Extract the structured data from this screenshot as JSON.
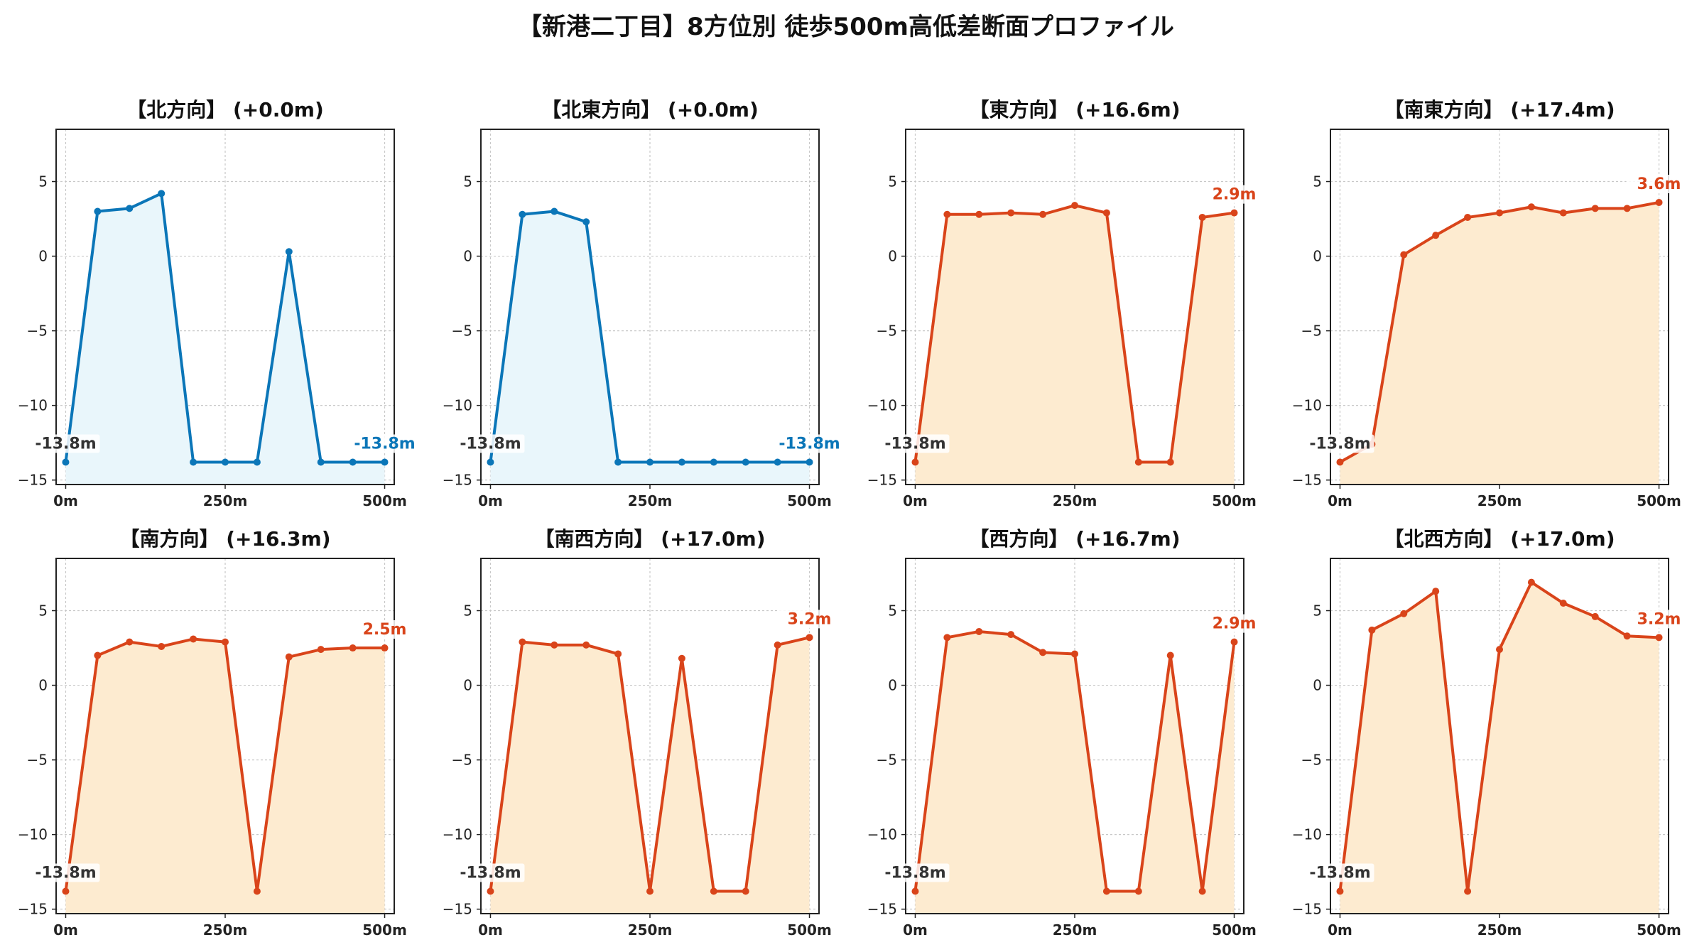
{
  "title": "【新港二丁目】8方位別 徒歩500m高低差断面プロファイル",
  "colors": {
    "flat_line": "#0b76b8",
    "flat_fill": "#e9f6fb",
    "slope_line": "#d9441a",
    "slope_fill": "#fdebd0"
  },
  "chart_data": [
    {
      "type": "area",
      "title": "【北方向】 (+0.0m)",
      "theme": "flat",
      "x": [
        0,
        50,
        100,
        150,
        200,
        250,
        300,
        350,
        400,
        450,
        500
      ],
      "x_ticks": [
        0,
        250,
        500
      ],
      "x_tick_labels": [
        "0m",
        "250m",
        "500m"
      ],
      "y": [
        -13.8,
        3.0,
        3.2,
        4.2,
        -13.8,
        -13.8,
        -13.8,
        0.3,
        -13.8,
        -13.8,
        -13.8
      ],
      "y_ticks": [
        5,
        0,
        -5,
        -10,
        -15
      ],
      "y_tick_labels": [
        "5",
        "0",
        "−5",
        "−10",
        "−15"
      ],
      "ylim": [
        -15.3,
        8.5
      ],
      "xlim": [
        -15,
        515
      ],
      "start_label": "-13.8m",
      "end_label": "-13.8m",
      "grid": true
    },
    {
      "type": "area",
      "title": "【北東方向】 (+0.0m)",
      "theme": "flat",
      "x": [
        0,
        50,
        100,
        150,
        200,
        250,
        300,
        350,
        400,
        450,
        500
      ],
      "x_ticks": [
        0,
        250,
        500
      ],
      "x_tick_labels": [
        "0m",
        "250m",
        "500m"
      ],
      "y": [
        -13.8,
        2.8,
        3.0,
        2.3,
        -13.8,
        -13.8,
        -13.8,
        -13.8,
        -13.8,
        -13.8,
        -13.8
      ],
      "y_ticks": [
        5,
        0,
        -5,
        -10,
        -15
      ],
      "y_tick_labels": [
        "5",
        "0",
        "−5",
        "−10",
        "−15"
      ],
      "ylim": [
        -15.3,
        8.5
      ],
      "xlim": [
        -15,
        515
      ],
      "start_label": "-13.8m",
      "end_label": "-13.8m",
      "grid": true
    },
    {
      "type": "area",
      "title": "【東方向】 (+16.6m)",
      "theme": "slope",
      "x": [
        0,
        50,
        100,
        150,
        200,
        250,
        300,
        350,
        400,
        450,
        500
      ],
      "x_ticks": [
        0,
        250,
        500
      ],
      "x_tick_labels": [
        "0m",
        "250m",
        "500m"
      ],
      "y": [
        -13.8,
        2.8,
        2.8,
        2.9,
        2.8,
        3.4,
        2.9,
        -13.8,
        -13.8,
        2.6,
        2.9
      ],
      "y_ticks": [
        5,
        0,
        -5,
        -10,
        -15
      ],
      "y_tick_labels": [
        "5",
        "0",
        "−5",
        "−10",
        "−15"
      ],
      "ylim": [
        -15.3,
        8.5
      ],
      "xlim": [
        -15,
        515
      ],
      "start_label": "-13.8m",
      "end_label": "2.9m",
      "grid": true
    },
    {
      "type": "area",
      "title": "【南東方向】 (+17.4m)",
      "theme": "slope",
      "x": [
        0,
        50,
        100,
        150,
        200,
        250,
        300,
        350,
        400,
        450,
        500
      ],
      "x_ticks": [
        0,
        250,
        500
      ],
      "x_tick_labels": [
        "0m",
        "250m",
        "500m"
      ],
      "y": [
        -13.8,
        -12.6,
        0.1,
        1.4,
        2.6,
        2.9,
        3.3,
        2.9,
        3.2,
        3.2,
        3.6
      ],
      "y_ticks": [
        5,
        0,
        -5,
        -10,
        -15
      ],
      "y_tick_labels": [
        "5",
        "0",
        "−5",
        "−10",
        "−15"
      ],
      "ylim": [
        -15.3,
        8.5
      ],
      "xlim": [
        -15,
        515
      ],
      "start_label": "-13.8m",
      "end_label": "3.6m",
      "grid": true
    },
    {
      "type": "area",
      "title": "【南方向】 (+16.3m)",
      "theme": "slope",
      "x": [
        0,
        50,
        100,
        150,
        200,
        250,
        300,
        350,
        400,
        450,
        500
      ],
      "x_ticks": [
        0,
        250,
        500
      ],
      "x_tick_labels": [
        "0m",
        "250m",
        "500m"
      ],
      "y": [
        -13.8,
        2.0,
        2.9,
        2.6,
        3.1,
        2.9,
        -13.8,
        1.9,
        2.4,
        2.5,
        2.5
      ],
      "y_ticks": [
        5,
        0,
        -5,
        -10,
        -15
      ],
      "y_tick_labels": [
        "5",
        "0",
        "−5",
        "−10",
        "−15"
      ],
      "ylim": [
        -15.3,
        8.5
      ],
      "xlim": [
        -15,
        515
      ],
      "start_label": "-13.8m",
      "end_label": "2.5m",
      "grid": true
    },
    {
      "type": "area",
      "title": "【南西方向】 (+17.0m)",
      "theme": "slope",
      "x": [
        0,
        50,
        100,
        150,
        200,
        250,
        300,
        350,
        400,
        450,
        500
      ],
      "x_ticks": [
        0,
        250,
        500
      ],
      "x_tick_labels": [
        "0m",
        "250m",
        "500m"
      ],
      "y": [
        -13.8,
        2.9,
        2.7,
        2.7,
        2.1,
        -13.8,
        1.8,
        -13.8,
        -13.8,
        2.7,
        3.2
      ],
      "y_ticks": [
        5,
        0,
        -5,
        -10,
        -15
      ],
      "y_tick_labels": [
        "5",
        "0",
        "−5",
        "−10",
        "−15"
      ],
      "ylim": [
        -15.3,
        8.5
      ],
      "xlim": [
        -15,
        515
      ],
      "start_label": "-13.8m",
      "end_label": "3.2m",
      "grid": true
    },
    {
      "type": "area",
      "title": "【西方向】 (+16.7m)",
      "theme": "slope",
      "x": [
        0,
        50,
        100,
        150,
        200,
        250,
        300,
        350,
        400,
        450,
        500
      ],
      "x_ticks": [
        0,
        250,
        500
      ],
      "x_tick_labels": [
        "0m",
        "250m",
        "500m"
      ],
      "y": [
        -13.8,
        3.2,
        3.6,
        3.4,
        2.2,
        2.1,
        -13.8,
        -13.8,
        2.0,
        -13.8,
        2.9
      ],
      "y_ticks": [
        5,
        0,
        -5,
        -10,
        -15
      ],
      "y_tick_labels": [
        "5",
        "0",
        "−5",
        "−10",
        "−15"
      ],
      "ylim": [
        -15.3,
        8.5
      ],
      "xlim": [
        -15,
        515
      ],
      "start_label": "-13.8m",
      "end_label": "2.9m",
      "grid": true
    },
    {
      "type": "area",
      "title": "【北西方向】 (+17.0m)",
      "theme": "slope",
      "x": [
        0,
        50,
        100,
        150,
        200,
        250,
        300,
        350,
        400,
        450,
        500
      ],
      "x_ticks": [
        0,
        250,
        500
      ],
      "x_tick_labels": [
        "0m",
        "250m",
        "500m"
      ],
      "y": [
        -13.8,
        3.7,
        4.8,
        6.3,
        -13.8,
        2.4,
        6.9,
        5.5,
        4.6,
        3.3,
        3.2
      ],
      "y_ticks": [
        5,
        0,
        -5,
        -10,
        -15
      ],
      "y_tick_labels": [
        "5",
        "0",
        "−5",
        "−10",
        "−15"
      ],
      "ylim": [
        -15.3,
        8.5
      ],
      "xlim": [
        -15,
        515
      ],
      "start_label": "-13.8m",
      "end_label": "3.2m",
      "grid": true
    }
  ]
}
